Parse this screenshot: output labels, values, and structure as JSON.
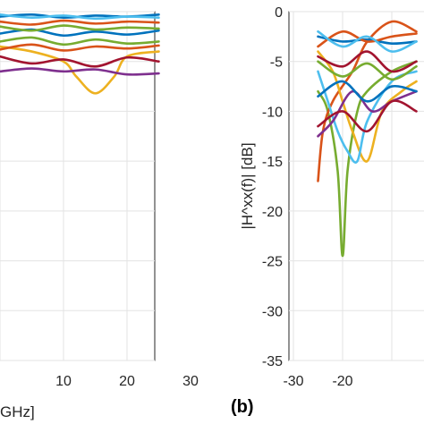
{
  "chart_data": [
    {
      "type": "line",
      "title": "",
      "xlabel": "GHz]",
      "ylabel": "",
      "xlim": [
        0,
        30
      ],
      "ylim": [
        -35,
        0
      ],
      "xticks": [
        10,
        20,
        30
      ],
      "grid": true,
      "series": [
        {
          "color": "#0072BD",
          "x": [
            0,
            5,
            10,
            15,
            20,
            25
          ],
          "y": [
            -0.5,
            -0.3,
            -0.6,
            -0.4,
            -0.5,
            -0.3
          ]
        },
        {
          "color": "#D95319",
          "x": [
            0,
            5,
            10,
            15,
            20,
            25
          ],
          "y": [
            -1.0,
            -1.3,
            -0.9,
            -1.2,
            -1.0,
            -1.1
          ]
        },
        {
          "color": "#EDB120",
          "x": [
            0,
            5,
            10,
            12,
            15,
            18,
            20,
            25
          ],
          "y": [
            -3.5,
            -4.0,
            -5.0,
            -6.5,
            -8.2,
            -6.5,
            -4.5,
            -4.0
          ]
        },
        {
          "color": "#7E2F8E",
          "x": [
            0,
            5,
            10,
            15,
            20,
            25
          ],
          "y": [
            -6.0,
            -5.7,
            -6.0,
            -5.8,
            -6.3,
            -6.2
          ]
        },
        {
          "color": "#77AC30",
          "x": [
            0,
            5,
            10,
            15,
            20,
            25
          ],
          "y": [
            -3.0,
            -2.6,
            -3.3,
            -2.8,
            -3.2,
            -3.0
          ]
        },
        {
          "color": "#4DBEEE",
          "x": [
            0,
            5,
            10,
            15,
            20,
            25
          ],
          "y": [
            -0.3,
            -0.6,
            -0.4,
            -0.7,
            -0.5,
            -0.6
          ]
        },
        {
          "color": "#A2142F",
          "x": [
            0,
            5,
            10,
            15,
            20,
            25
          ],
          "y": [
            -4.5,
            -5.2,
            -4.8,
            -5.5,
            -4.6,
            -5.0
          ]
        },
        {
          "color": "#0072BD",
          "x": [
            0,
            5,
            10,
            15,
            20,
            25
          ],
          "y": [
            -2.2,
            -1.8,
            -2.4,
            -2.0,
            -2.3,
            -1.9
          ]
        },
        {
          "color": "#D95319",
          "x": [
            0,
            5,
            10,
            15,
            20,
            25
          ],
          "y": [
            -3.8,
            -3.3,
            -3.9,
            -3.5,
            -3.7,
            -3.4
          ]
        },
        {
          "color": "#77AC30",
          "x": [
            0,
            5,
            10,
            15,
            20,
            25
          ],
          "y": [
            -1.5,
            -1.9,
            -1.4,
            -1.8,
            -1.6,
            -1.7
          ]
        }
      ]
    },
    {
      "type": "line",
      "title": "",
      "xlabel": "",
      "ylabel": "|H^xx(f)| [dB]",
      "xlim": [
        -30,
        0
      ],
      "ylim": [
        -35,
        0
      ],
      "xticks": [
        -30,
        -20
      ],
      "yticks": [
        0,
        -5,
        -10,
        -15,
        -20,
        -25,
        -30,
        -35
      ],
      "grid": true,
      "series": [
        {
          "color": "#77AC30",
          "x": [
            -25,
            -23,
            -21,
            -20,
            -19,
            -17,
            -15,
            -10,
            -5
          ],
          "y": [
            -8,
            -10,
            -16,
            -24.5,
            -16,
            -10,
            -8,
            -6,
            -5
          ]
        },
        {
          "color": "#D95319",
          "x": [
            -25,
            -24,
            -22,
            -18,
            -15,
            -10,
            -5
          ],
          "y": [
            -17,
            -12,
            -9,
            -6,
            -3,
            -1,
            -2
          ]
        },
        {
          "color": "#EDB120",
          "x": [
            -25,
            -22,
            -20,
            -18,
            -15,
            -12,
            -8,
            -5
          ],
          "y": [
            -4,
            -6,
            -9,
            -12,
            -15,
            -10,
            -8,
            -7
          ]
        },
        {
          "color": "#4DBEEE",
          "x": [
            -25,
            -23,
            -21,
            -19,
            -17,
            -15,
            -10,
            -5
          ],
          "y": [
            -6,
            -9,
            -12,
            -14,
            -15,
            -11,
            -7,
            -6
          ]
        },
        {
          "color": "#0072BD",
          "x": [
            -25,
            -20,
            -15,
            -10,
            -5
          ],
          "y": [
            -2.5,
            -3.0,
            -2.8,
            -3.2,
            -3.0
          ]
        },
        {
          "color": "#A2142F",
          "x": [
            -25,
            -20,
            -15,
            -10,
            -5
          ],
          "y": [
            -4.5,
            -5.5,
            -4.0,
            -6.0,
            -5.0
          ]
        },
        {
          "color": "#7E2F8E",
          "x": [
            -25,
            -22,
            -18,
            -14,
            -10,
            -5
          ],
          "y": [
            -12.5,
            -11,
            -8,
            -10,
            -9,
            -8
          ]
        },
        {
          "color": "#0072BD",
          "x": [
            -25,
            -20,
            -15,
            -10,
            -5
          ],
          "y": [
            -8.5,
            -7,
            -9,
            -7.5,
            -8
          ]
        },
        {
          "color": "#D95319",
          "x": [
            -25,
            -20,
            -15,
            -10,
            -5
          ],
          "y": [
            -3.5,
            -2.0,
            -3.0,
            -2.5,
            -2.2
          ]
        },
        {
          "color": "#77AC30",
          "x": [
            -25,
            -20,
            -15,
            -10,
            -5
          ],
          "y": [
            -5.0,
            -6.5,
            -5.2,
            -6.8,
            -5.5
          ]
        },
        {
          "color": "#A2142F",
          "x": [
            -25,
            -20,
            -15,
            -10,
            -5
          ],
          "y": [
            -11.5,
            -10,
            -12,
            -9,
            -10
          ]
        },
        {
          "color": "#4DBEEE",
          "x": [
            -25,
            -20,
            -15,
            -10,
            -5
          ],
          "y": [
            -2.0,
            -3.5,
            -2.5,
            -4.0,
            -3.0
          ]
        }
      ]
    }
  ],
  "panel_labels": {
    "b": "(b)"
  }
}
